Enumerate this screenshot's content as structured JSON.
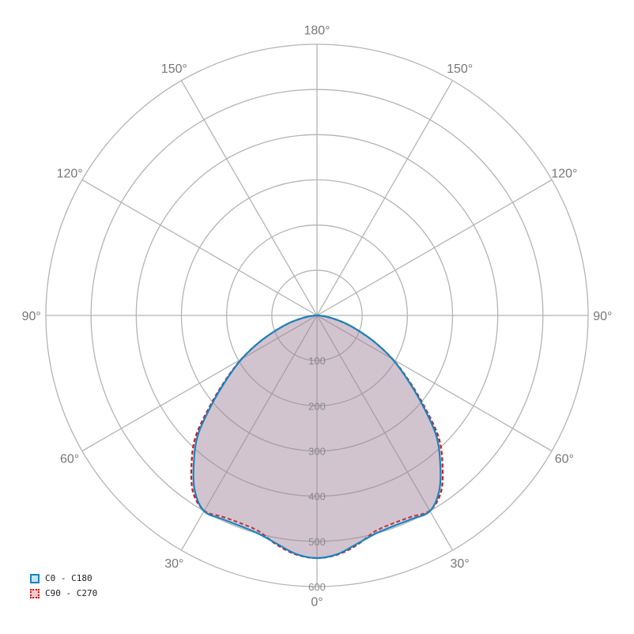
{
  "chart_data": {
    "type": "polar",
    "angle_labels": [
      "0°",
      "30°",
      "60°",
      "90°",
      "120°",
      "150°",
      "180°"
    ],
    "radial_ticks": [
      100,
      200,
      300,
      400,
      500,
      600
    ],
    "radial_range": [
      0,
      600
    ],
    "grid": true,
    "legend_position": "bottom-left",
    "angles": [
      0,
      5,
      10,
      15,
      20,
      25,
      30,
      35,
      40,
      45,
      50,
      55,
      60,
      65,
      70,
      75,
      80,
      85,
      90
    ],
    "series": [
      {
        "name": "C0 - C180",
        "color": "#1a84c0",
        "fill": "#c6e2f3",
        "line": "solid",
        "values": [
          537,
          530,
          513,
          500,
          496,
          497,
          500,
          472,
          424,
          372,
          302,
          242,
          192,
          142,
          97,
          62,
          32,
          11,
          0
        ]
      },
      {
        "name": "C90 - C270",
        "color": "#cc1a1a",
        "fill": "#f5c8c8",
        "line": "dotted",
        "values": [
          537,
          531,
          515,
          495,
          490,
          492,
          499,
          478,
          432,
          380,
          307,
          245,
          193,
          142,
          96,
          61,
          31,
          10,
          0
        ]
      }
    ]
  }
}
